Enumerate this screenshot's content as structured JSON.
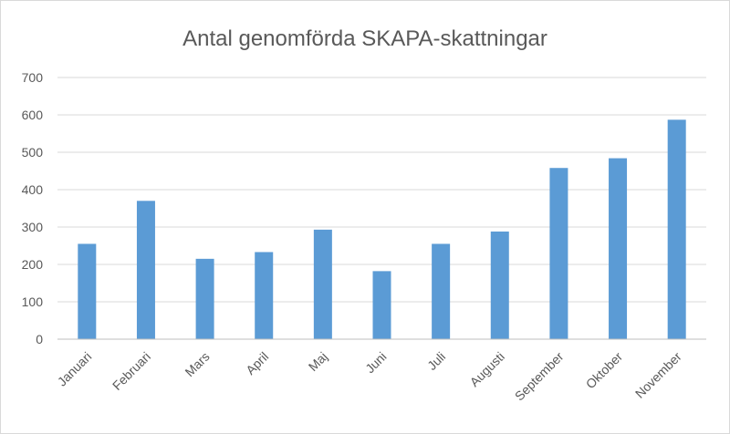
{
  "chart_data": {
    "type": "bar",
    "title": "Antal genomförda SKAPA-skattningar",
    "xlabel": "",
    "ylabel": "",
    "categories": [
      "Januari",
      "Februari",
      "Mars",
      "April",
      "Maj",
      "Juni",
      "Juli",
      "Augusti",
      "September",
      "Oktober",
      "November"
    ],
    "values": [
      255,
      370,
      215,
      233,
      293,
      182,
      255,
      288,
      458,
      484,
      587
    ],
    "ylim": [
      0,
      700
    ],
    "yticks": [
      0,
      100,
      200,
      300,
      400,
      500,
      600,
      700
    ],
    "grid": true,
    "legend": "none",
    "bar_color": "#5b9bd5"
  }
}
